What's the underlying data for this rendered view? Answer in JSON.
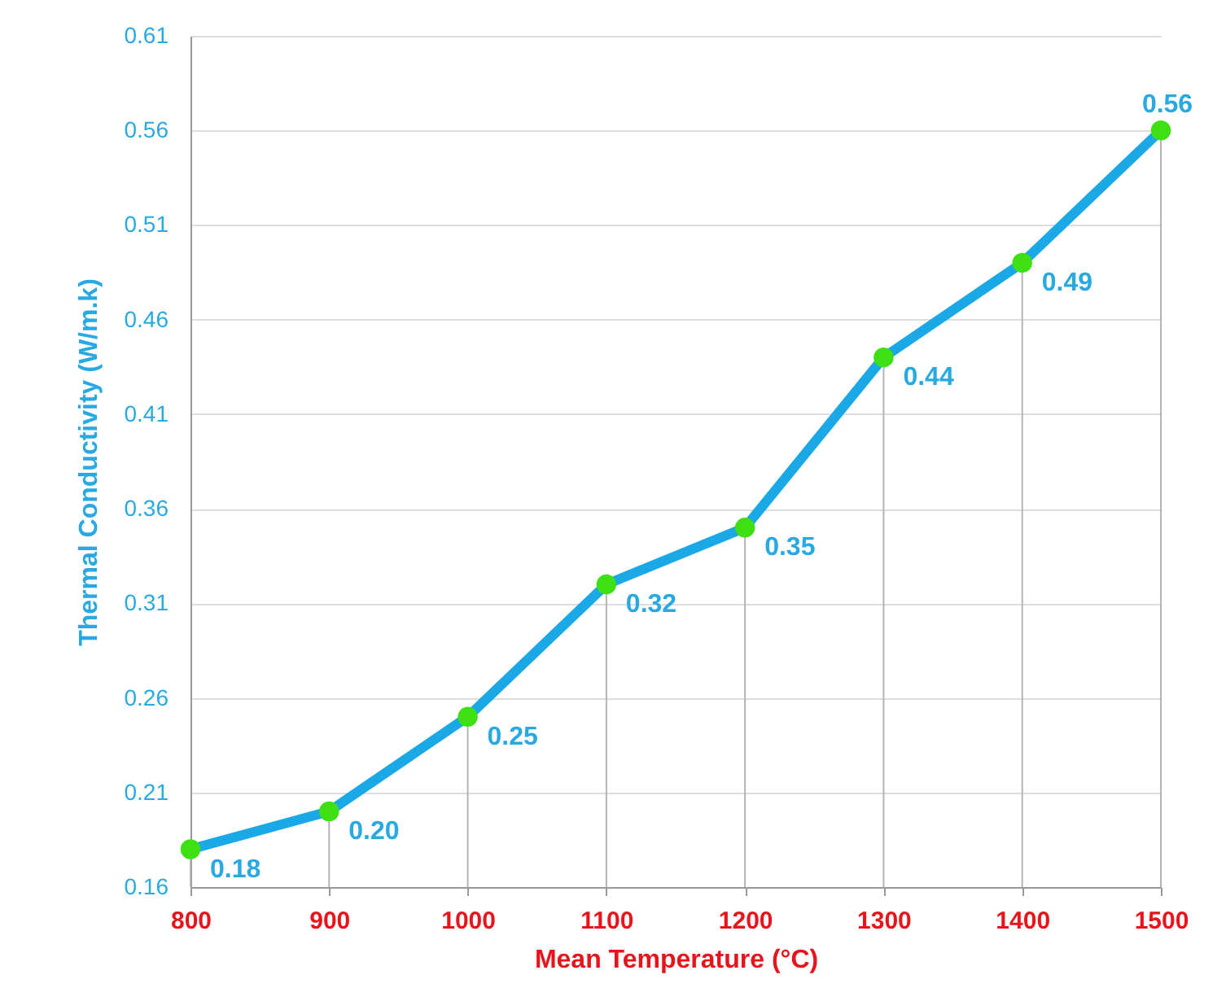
{
  "chart_data": {
    "type": "line",
    "xlabel": "Mean Temperature (°C)",
    "ylabel": "Thermal Conductivity (W/m.k)",
    "x": [
      800,
      900,
      1000,
      1100,
      1200,
      1300,
      1400,
      1500
    ],
    "series": [
      {
        "color": "#1aa9e6",
        "values": [
          0.18,
          0.2,
          0.25,
          0.32,
          0.35,
          0.44,
          0.49,
          0.56
        ],
        "value_labels": [
          "0.18",
          "0.20",
          "0.25",
          "0.32",
          "0.35",
          "0.44",
          "0.49",
          "0.56"
        ]
      }
    ],
    "xlim": [
      800,
      1500
    ],
    "xticks": [
      800,
      900,
      1000,
      1100,
      1200,
      1300,
      1400,
      1500
    ],
    "ylim": [
      0.16,
      0.61
    ],
    "yticks": [
      0.16,
      0.21,
      0.26,
      0.31,
      0.36,
      0.41,
      0.46,
      0.51,
      0.56,
      0.61
    ],
    "grid": "y",
    "marker": "circle",
    "line_style": "solid"
  }
}
